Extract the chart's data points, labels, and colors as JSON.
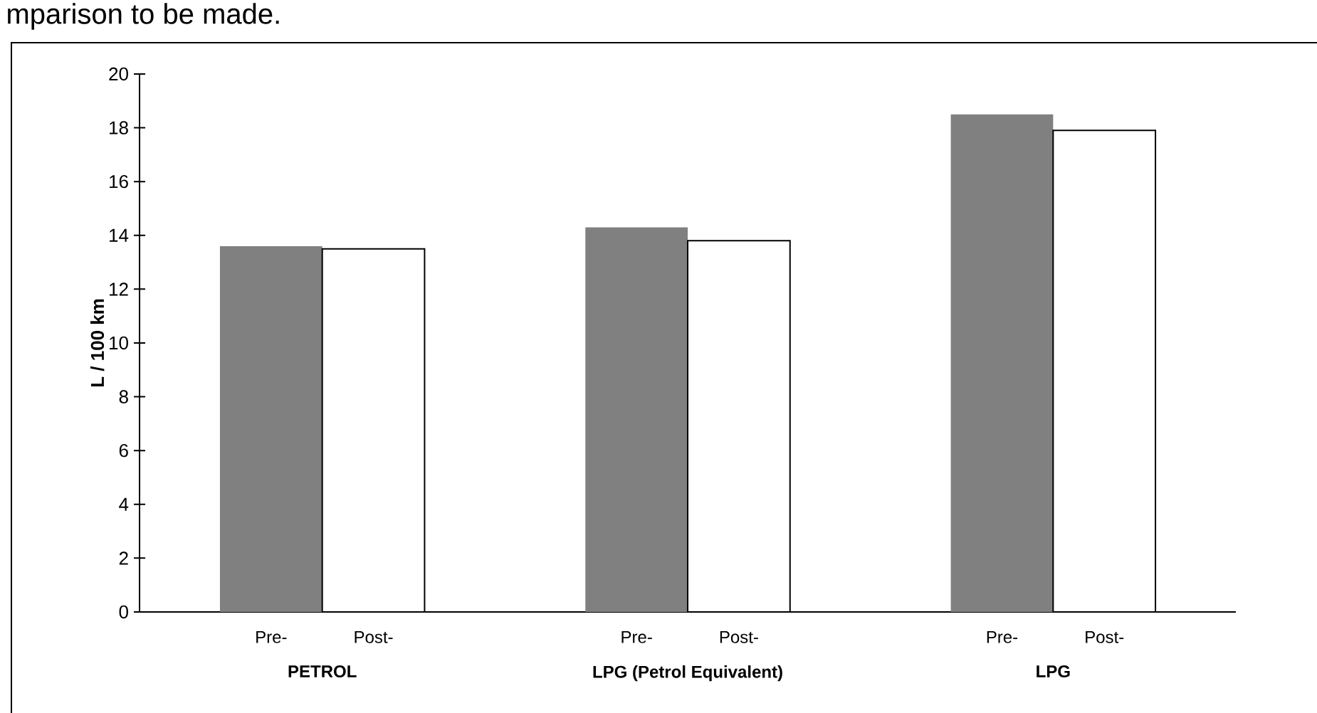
{
  "chart_data": {
    "type": "bar",
    "ylabel": "L / 100 km",
    "annotations": [
      "mparison to be made."
    ],
    "categories": [
      "PETROL",
      "LPG (Petrol Equivalent)",
      "LPG"
    ],
    "series": [
      {
        "name": "Pre-",
        "color": "#808080",
        "values": [
          13.6,
          14.3,
          18.5
        ]
      },
      {
        "name": "Post-",
        "color": "#ffffff",
        "values": [
          13.5,
          13.8,
          17.9
        ]
      }
    ],
    "ylim": [
      0,
      20
    ],
    "yticks": [
      0,
      2,
      4,
      6,
      8,
      10,
      12,
      14,
      16,
      18,
      20
    ],
    "grid": false,
    "legend": false
  }
}
